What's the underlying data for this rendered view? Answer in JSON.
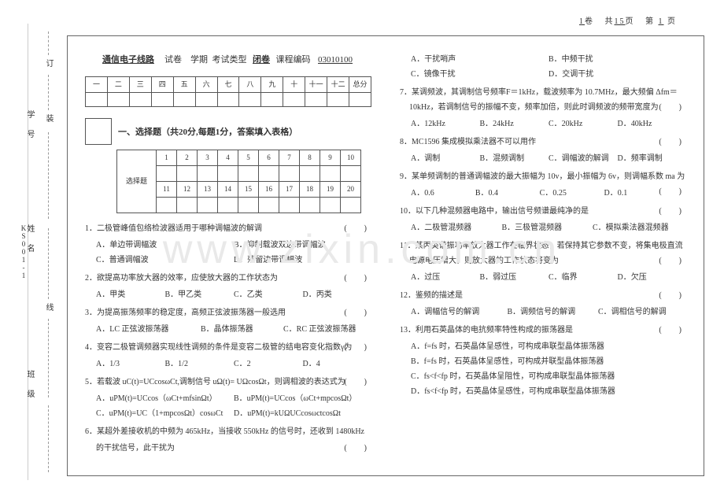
{
  "header": {
    "juan": "1",
    "total_pages": "15",
    "page_no": "1"
  },
  "side_code": "KS001-1",
  "binding_labels": [
    "订",
    "装",
    "学 号",
    "姓 名",
    "线",
    "班 级"
  ],
  "title": {
    "course": "通信电子线路",
    "t1": "试卷",
    "t2": "学期",
    "t3": "考试类型",
    "exam_type": "闭卷",
    "t4": "课程编码",
    "code": "03010100"
  },
  "score_cols": [
    "一",
    "二",
    "三",
    "四",
    "五",
    "六",
    "七",
    "八",
    "九",
    "十",
    "十一",
    "十二",
    "总分"
  ],
  "section1_title": "一、选择题（共20分,每题1分，答案填入表格）",
  "ans_label": "选择题",
  "ans_nums_top": [
    "1",
    "2",
    "3",
    "4",
    "5",
    "6",
    "7",
    "8",
    "9",
    "10"
  ],
  "ans_nums_bot": [
    "11",
    "12",
    "13",
    "14",
    "15",
    "16",
    "17",
    "18",
    "19",
    "20"
  ],
  "watermark": "www.zixin.com.cn",
  "q1": {
    "stem": "1．二极管峰值包络检波器适用于哪种调幅波的解调",
    "opts": [
      "A．单边带调幅波",
      "B．抑制载波双边带调幅波",
      "C．普通调幅波",
      "D．残留边带调幅波"
    ]
  },
  "q2": {
    "stem": "2．欲提高功率放大器的效率，应使放大器的工作状态为",
    "opts": [
      "A．甲类",
      "B．甲乙类",
      "C．乙类",
      "D．丙类"
    ]
  },
  "q3": {
    "stem": "3．为提高振荡频率的稳定度，高频正弦波振荡器一般选用",
    "opts": [
      "A．LC 正弦波振荡器",
      "B．晶体振荡器",
      "C．RC 正弦波振荡器"
    ]
  },
  "q4": {
    "stem": "4．变容二极管调频器实现线性调频的条件是变容二极管的结电容变化指数γ为",
    "opts": [
      "A．1/3",
      "B．1/2",
      "C．2",
      "D．4"
    ]
  },
  "q5": {
    "stem": "5．若载波 uC(t)=UCcosωCt,调制信号 uΩ(t)= UΩcosΩt，则调相波的表达式为",
    "opts": [
      "A．uPM(t)=UCcos（ωCt+mfsinΩt）",
      "B．uPM(t)=UCcos（ωCt+mpcosΩt）",
      "C．uPM(t)=UC（1+mpcosΩt）cosωCt",
      "D．uPM(t)=kUΩUCcosωctcosΩt"
    ]
  },
  "q6": {
    "stem": "6．某超外差接收机的中频为 465kHz，当接收 550kHz 的信号时，还收到 1480kHz",
    "cont": "的干扰信号，此干扰为",
    "opts": [
      "A．干扰哨声",
      "B．中频干扰",
      "C．镜像干扰",
      "D．交调干扰"
    ]
  },
  "q7": {
    "stem": "7．某调频波，其调制信号频率F＝1kHz，载波频率为 10.7MHz，最大频偏 Δfm＝10kHz，若调制信号的振幅不变，频率加倍，则此时调频波的频带宽度为",
    "opts": [
      "A．12kHz",
      "B．24kHz",
      "C．20kHz",
      "D．40kHz"
    ]
  },
  "q8": {
    "stem": "8．MC1596 集成模拟乘法器不可以用作",
    "opts": [
      "A．调制",
      "B．混频调制",
      "C．调幅波的解调",
      "D．频率调制"
    ]
  },
  "q9": {
    "stem": "9．某单频调制的普通调幅波的最大振幅为 10v，最小振幅为 6v，则调幅系数 ma 为",
    "opts": [
      "A．0.6",
      "B．0.4",
      "C．0.25",
      "D．0.1"
    ]
  },
  "q10": {
    "stem": "10．以下几种混频器电路中，输出信号频谱最纯净的是",
    "opts": [
      "A．二极管混频器",
      "B．三极管混频器",
      "C．模拟乘法器混频器"
    ]
  },
  "q11": {
    "stem": "11．某丙类谐振功率放大器工作在临界状态，若保持其它参数不变，将集电极直流电源电压增大，则放大器的工作状态将变为",
    "opts": [
      "A．过压",
      "B．弱过压",
      "C．临界",
      "D．欠压"
    ]
  },
  "q12": {
    "stem": "12．鉴频的描述是",
    "opts": [
      "A．调幅信号的解调",
      "B．调频信号的解调",
      "C．调相信号的解调"
    ]
  },
  "q13": {
    "stem": "13．利用石英晶体的电抗频率特性构成的振荡器是",
    "opts": [
      "A．f=fs 时，石英晶体呈感性，可构成串联型晶体振荡器",
      "B．f=fs 时，石英晶体呈感性，可构成并联型晶体振荡器",
      "C．fs<f<fp 时，石英晶体呈阻性，可构成串联型晶体振荡器",
      "D．fs<f<fp 时，石英晶体呈感性，可构成串联型晶体振荡器"
    ]
  }
}
